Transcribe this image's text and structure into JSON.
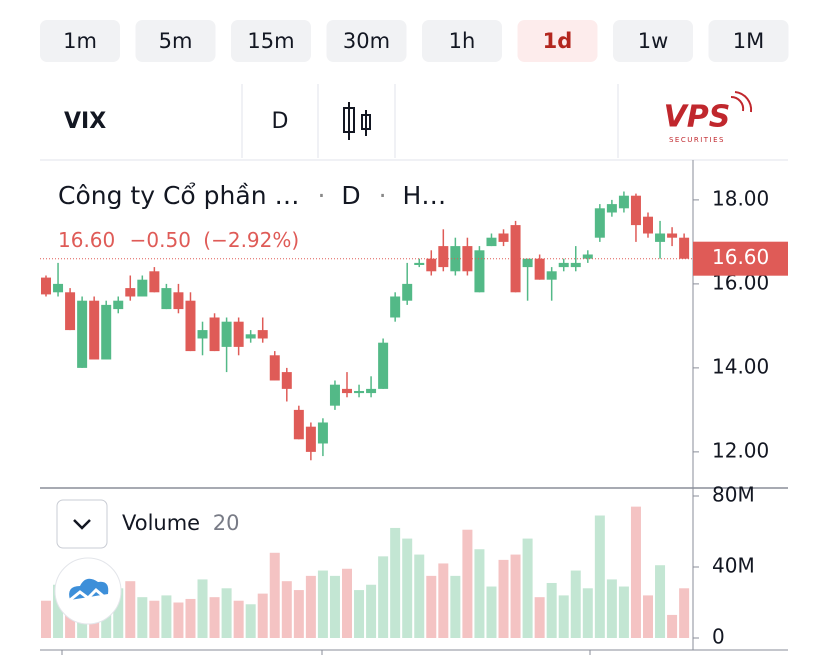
{
  "timeframes": {
    "options": [
      "1m",
      "5m",
      "15m",
      "30m",
      "1h",
      "1d",
      "1w",
      "1M"
    ],
    "selected": 5
  },
  "toolbar": {
    "symbol": "VIX",
    "interval": "D",
    "logo": "VPS",
    "logo_sub": "SECURITIES"
  },
  "legend": {
    "name": "Công ty Cổ phần …",
    "sep1": "·",
    "interval": "D",
    "sep2": "·",
    "exchange": "H…",
    "close": "16.60",
    "change": "−0.50",
    "change_pct": "(−2.92%)"
  },
  "volume_legend": {
    "name": "Volume",
    "length": "20"
  },
  "chart_data": {
    "type": "candlestick",
    "up_color": "#53b987",
    "down_color": "#df5b57",
    "volume_up_color": "#c3e6d3",
    "volume_down_color": "#f4c3c3",
    "ylim": [
      11.14,
      18.95
    ],
    "yticks": [
      {
        "value": 12,
        "label": "12.00"
      },
      {
        "value": 14,
        "label": "14.00"
      },
      {
        "value": 16,
        "label": "16.00"
      },
      {
        "value": 18,
        "label": "18.00"
      }
    ],
    "last_price": {
      "value": 16.6,
      "label": "16.60"
    },
    "volume_ylim": [
      0,
      84.5
    ],
    "volume_yticks": [
      {
        "value": 0,
        "label": "0"
      },
      {
        "value": 40,
        "label": "40M"
      },
      {
        "value": 80,
        "label": "80M"
      }
    ],
    "open": [
      16.15,
      15.8,
      15.8,
      14.0,
      15.6,
      14.2,
      15.4,
      15.9,
      15.7,
      16.3,
      15.4,
      15.8,
      15.6,
      14.7,
      15.2,
      14.5,
      15.1,
      14.7,
      14.9,
      14.3,
      13.9,
      13.0,
      12.6,
      12.2,
      13.1,
      13.5,
      13.4,
      13.4,
      13.5,
      15.2,
      15.6,
      16.45,
      16.6,
      16.9,
      16.3,
      16.9,
      15.8,
      16.9,
      17.2,
      17.4,
      16.4,
      16.6,
      16.1,
      16.4,
      16.4,
      16.6,
      17.1,
      17.7,
      17.8,
      18.1,
      17.6,
      17.0,
      17.2,
      17.1
    ],
    "high": [
      16.2,
      16.5,
      15.9,
      15.7,
      15.7,
      15.6,
      15.7,
      16.2,
      16.2,
      16.4,
      16.0,
      16.0,
      15.8,
      15.1,
      15.3,
      15.2,
      15.2,
      14.9,
      15.2,
      14.4,
      14.0,
      13.1,
      12.7,
      12.8,
      13.7,
      13.9,
      13.6,
      13.8,
      14.7,
      15.8,
      16.5,
      16.6,
      16.8,
      17.3,
      17.1,
      17.1,
      16.9,
      17.2,
      17.3,
      17.5,
      16.6,
      16.7,
      16.4,
      16.6,
      16.9,
      16.8,
      17.9,
      18.0,
      18.2,
      18.15,
      17.7,
      17.5,
      17.35,
      17.2
    ],
    "low": [
      15.7,
      15.7,
      14.9,
      14.0,
      14.2,
      14.2,
      15.3,
      15.6,
      15.7,
      15.8,
      15.4,
      15.3,
      14.4,
      14.3,
      14.4,
      13.9,
      14.3,
      14.6,
      14.6,
      13.7,
      13.2,
      12.3,
      11.8,
      11.9,
      13.0,
      13.3,
      13.3,
      13.3,
      13.5,
      15.1,
      15.5,
      16.4,
      16.2,
      16.3,
      16.2,
      16.2,
      15.8,
      16.9,
      16.9,
      15.8,
      15.6,
      16.1,
      15.6,
      16.3,
      16.3,
      16.5,
      17.0,
      17.6,
      17.7,
      17.0,
      17.1,
      16.6,
      16.9,
      16.6
    ],
    "close": [
      15.75,
      16.0,
      14.9,
      15.6,
      14.2,
      15.5,
      15.6,
      15.7,
      16.1,
      15.8,
      15.9,
      15.4,
      14.4,
      14.9,
      14.4,
      15.1,
      14.5,
      14.8,
      14.7,
      13.7,
      13.5,
      12.3,
      12.0,
      12.7,
      13.6,
      13.4,
      13.45,
      13.5,
      14.6,
      15.7,
      16.0,
      16.5,
      16.3,
      16.4,
      16.9,
      16.3,
      16.8,
      17.1,
      17.0,
      15.8,
      16.6,
      16.1,
      16.3,
      16.5,
      16.5,
      16.7,
      17.8,
      17.9,
      18.1,
      17.4,
      17.2,
      17.2,
      17.1,
      16.6
    ],
    "volume": [
      21,
      30,
      17,
      24,
      23,
      20,
      28,
      32,
      23,
      21,
      24,
      20,
      22,
      33,
      23,
      28,
      21,
      19,
      25,
      48,
      32,
      27,
      35,
      38,
      35,
      39,
      27,
      30,
      46,
      62,
      56,
      47,
      35,
      42,
      35,
      61,
      50,
      29,
      44,
      47,
      56,
      23,
      31,
      24,
      38,
      28,
      69,
      33,
      29,
      74,
      24,
      41,
      13,
      28
    ]
  }
}
